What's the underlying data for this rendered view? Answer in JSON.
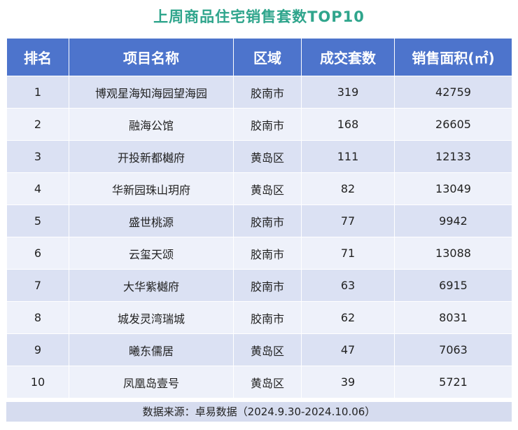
{
  "title": "上周商品住宅销售套数TOP10",
  "headers": [
    "排名",
    "项目名称",
    "区域",
    "成交套数",
    "销售面积(㎡)"
  ],
  "rows": [
    [
      "1",
      "博观星海知海园望海园",
      "胶南市",
      "319",
      "42759"
    ],
    [
      "2",
      "融海公馆",
      "胶南市",
      "168",
      "26605"
    ],
    [
      "3",
      "开投新都樾府",
      "黄岛区",
      "111",
      "12133"
    ],
    [
      "4",
      "华新园珠山玥府",
      "黄岛区",
      "82",
      "13049"
    ],
    [
      "5",
      "盛世桃源",
      "胶南市",
      "77",
      "9942"
    ],
    [
      "6",
      "云玺天颂",
      "胶南市",
      "71",
      "13088"
    ],
    [
      "7",
      "大华紫樾府",
      "胶南市",
      "63",
      "6915"
    ],
    [
      "8",
      "城发灵湾瑞城",
      "胶南市",
      "62",
      "8031"
    ],
    [
      "9",
      "曦东儒居",
      "黄岛区",
      "47",
      "7063"
    ],
    [
      "10",
      "凤凰岛壹号",
      "黄岛区",
      "39",
      "5721"
    ]
  ],
  "footer": "数据来源：卓易数据（2024.9.30-2024.10.06）",
  "colors": {
    "title": "#2fa58c",
    "header_bg": "#4d74cc",
    "row_odd": "#dbe1f3",
    "row_even": "#eef1fa"
  }
}
